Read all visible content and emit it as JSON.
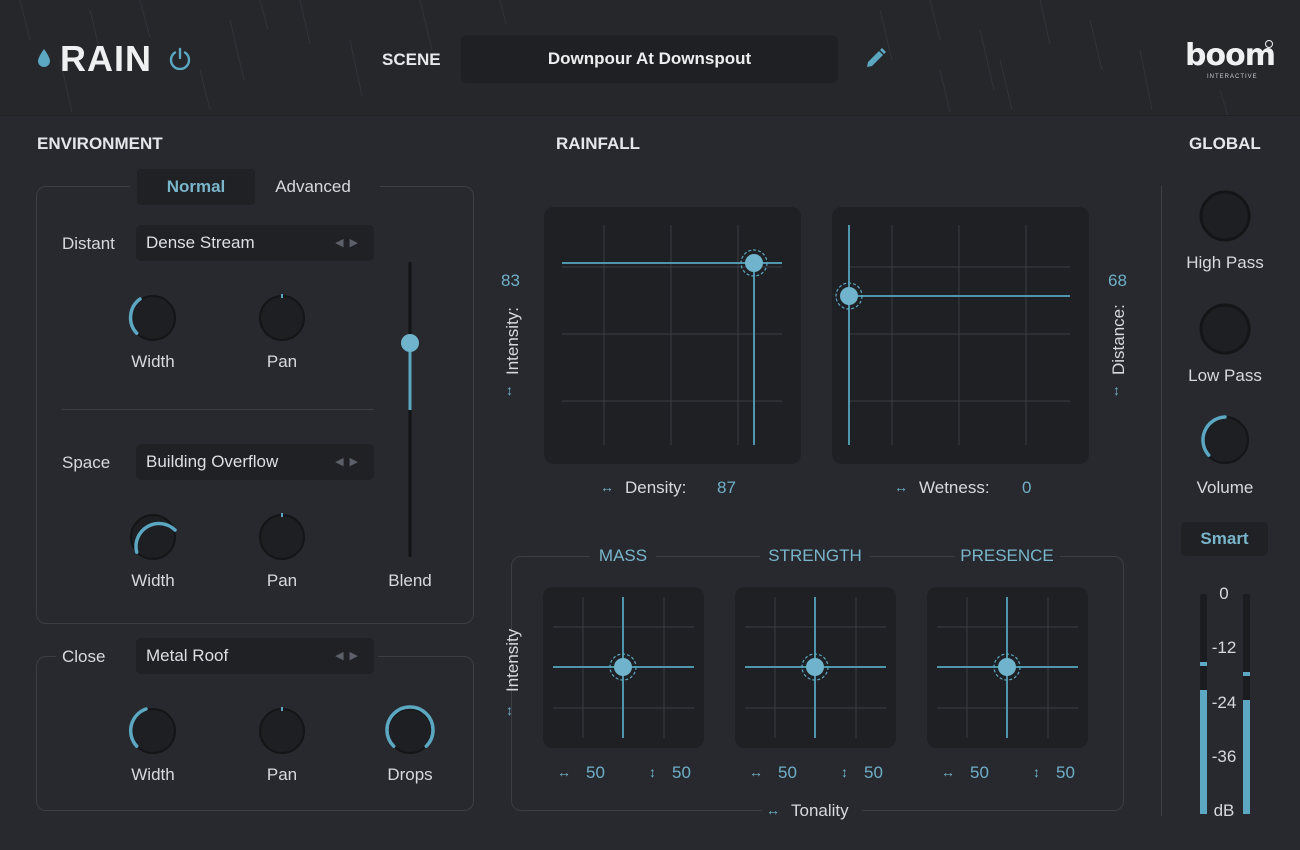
{
  "header": {
    "app_title": "RAIN",
    "scene_label": "SCENE",
    "scene_name": "Downpour At Downspout",
    "brand": "boom",
    "brand_sub": "INTERACTIVE"
  },
  "environment": {
    "title": "ENVIRONMENT",
    "tabs": [
      {
        "label": "Normal",
        "active": true
      },
      {
        "label": "Advanced",
        "active": false
      }
    ],
    "distant": {
      "label": "Distant",
      "preset": "Dense Stream",
      "width_label": "Width",
      "pan_label": "Pan"
    },
    "space": {
      "label": "Space",
      "preset": "Building Overflow",
      "width_label": "Width",
      "pan_label": "Pan"
    },
    "blend_label": "Blend",
    "close": {
      "label": "Close",
      "preset": "Metal Roof",
      "width_label": "Width",
      "pan_label": "Pan",
      "drops_label": "Drops"
    }
  },
  "rainfall": {
    "title": "RAINFALL",
    "intensity_label": "Intensity:",
    "intensity_value": "83",
    "distance_label": "Distance:",
    "distance_value": "68",
    "density_label": "Density:",
    "density_value": "87",
    "wetness_label": "Wetness:",
    "wetness_value": "0",
    "sub_intensity_label": "Intensity",
    "tonality_label": "Tonality",
    "pads": [
      {
        "title": "MASS",
        "x_value": "50",
        "y_value": "50"
      },
      {
        "title": "STRENGTH",
        "x_value": "50",
        "y_value": "50"
      },
      {
        "title": "PRESENCE",
        "x_value": "50",
        "y_value": "50"
      }
    ]
  },
  "global": {
    "title": "GLOBAL",
    "high_pass_label": "High Pass",
    "low_pass_label": "Low Pass",
    "volume_label": "Volume",
    "smart_label": "Smart",
    "meter_scale": [
      "0",
      "-12",
      "-24",
      "-36",
      "dB"
    ]
  },
  "colors": {
    "accent": "#5ca7c2",
    "background": "#27292e",
    "field": "#1f2124"
  }
}
